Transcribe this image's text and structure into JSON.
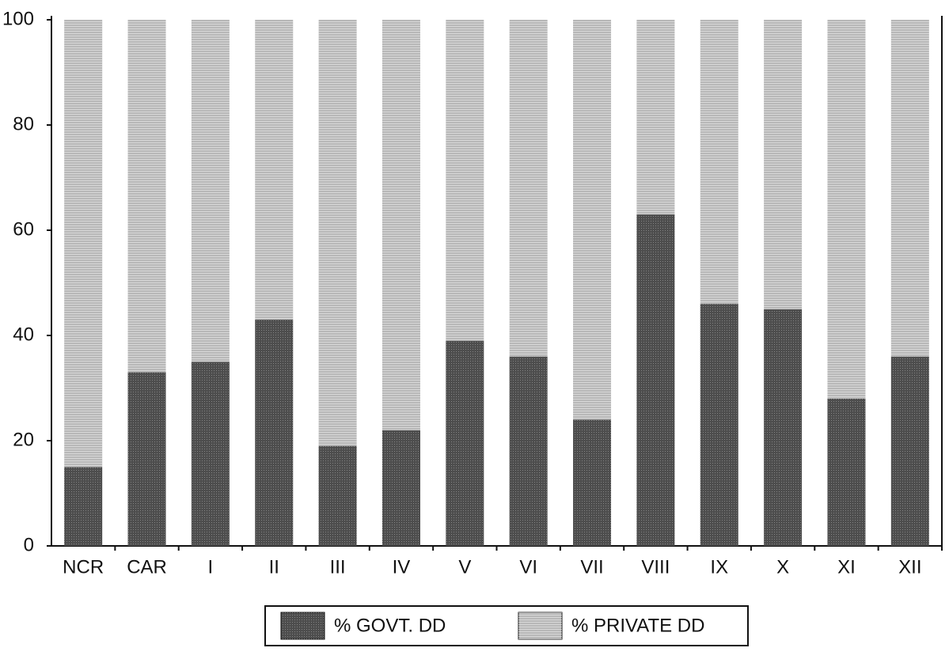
{
  "chart_data": {
    "type": "stacked_bar",
    "categories": [
      "NCR",
      "CAR",
      "I",
      "II",
      "III",
      "IV",
      "V",
      "VI",
      "VII",
      "VIII",
      "IX",
      "X",
      "XI",
      "XII"
    ],
    "series": [
      {
        "name": "% GOVT. DD",
        "color": "#4d4d4d",
        "values": [
          15,
          33,
          35,
          43,
          19,
          22,
          39,
          36,
          24,
          63,
          46,
          45,
          28,
          36
        ]
      },
      {
        "name": "% PRIVATE DD",
        "color": "#b8b8b8",
        "values": [
          85,
          67,
          65,
          57,
          81,
          78,
          61,
          64,
          76,
          37,
          54,
          55,
          72,
          64
        ]
      }
    ],
    "ylim": [
      0,
      100
    ],
    "yticks": [
      0,
      20,
      40,
      60,
      80,
      100
    ],
    "grid": false
  }
}
